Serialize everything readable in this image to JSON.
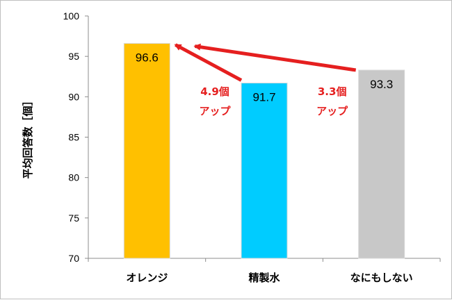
{
  "chart_data": {
    "type": "bar",
    "ylabel": "平均回答数［個］",
    "categories": [
      "オレンジ",
      "精製水",
      "なにもしない"
    ],
    "values": [
      96.6,
      91.7,
      93.3
    ],
    "value_labels": [
      "96.6",
      "91.7",
      "93.3"
    ],
    "ylim": [
      70,
      100
    ],
    "yticks": [
      70,
      75,
      80,
      85,
      90,
      95,
      100
    ],
    "grid": false,
    "legend": "none",
    "colors": [
      "#ffc000",
      "#00ccff",
      "#c8c8c8"
    ],
    "annotations": [
      {
        "from": "精製水",
        "to": "オレンジ",
        "line1": "4.9個",
        "line2": "アップ"
      },
      {
        "from": "なにもしない",
        "to": "オレンジ",
        "line1": "3.3個",
        "line2": "アップ"
      }
    ],
    "arrow_color": "#e51f1f"
  }
}
